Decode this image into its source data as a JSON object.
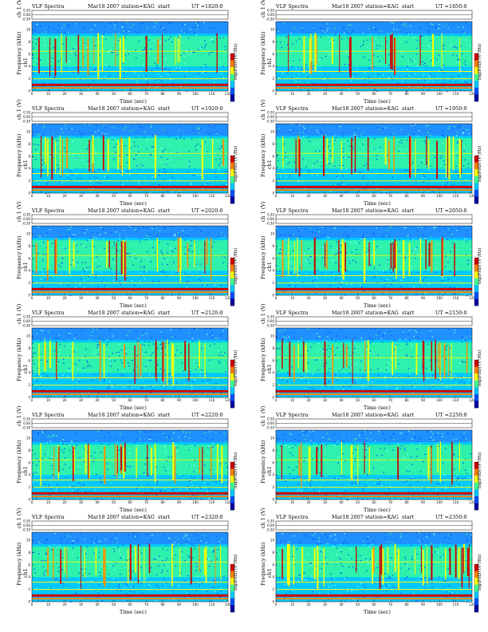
{
  "colors": {
    "lowest": "#0000a0",
    "low": "#00c8ff",
    "mid": "#3cff90",
    "high": "#ffff00",
    "highest": "#d00000"
  },
  "labels": {
    "title_left": "VLF Spectra",
    "date": "Mar18 2007",
    "station": "station=KAG",
    "start": "start",
    "ut_prefix": "UT =",
    "ch_axis": "ch 1 (V)",
    "freq_axis": "Frequency (kHz)",
    "ch1": "ch1",
    "time_axis": "Time (sec)",
    "colorbar": "log(PSD) (V²/Hz)"
  },
  "chart_data": {
    "type": "heatmap",
    "panels": [
      {
        "ut": "1820:0"
      },
      {
        "ut": "1850:0"
      },
      {
        "ut": "1920:0"
      },
      {
        "ut": "1950:0"
      },
      {
        "ut": "2020:0"
      },
      {
        "ut": "2050:0"
      },
      {
        "ut": "2120:0"
      },
      {
        "ut": "2150:0"
      },
      {
        "ut": "2220:0"
      },
      {
        "ut": "2250:0"
      },
      {
        "ut": "2320:0"
      },
      {
        "ut": "2350:0"
      }
    ],
    "x_ticks": [
      "0",
      "10",
      "20",
      "30",
      "40",
      "50",
      "60",
      "70",
      "80",
      "90",
      "100",
      "110",
      "120"
    ],
    "y_ticks": [
      "0",
      "2",
      "4",
      "6",
      "8",
      "10"
    ],
    "ch_ticks": [
      "-0.30",
      "0.00",
      "0.30"
    ],
    "xlim": [
      0,
      120
    ],
    "ylim": [
      0,
      10
    ]
  }
}
